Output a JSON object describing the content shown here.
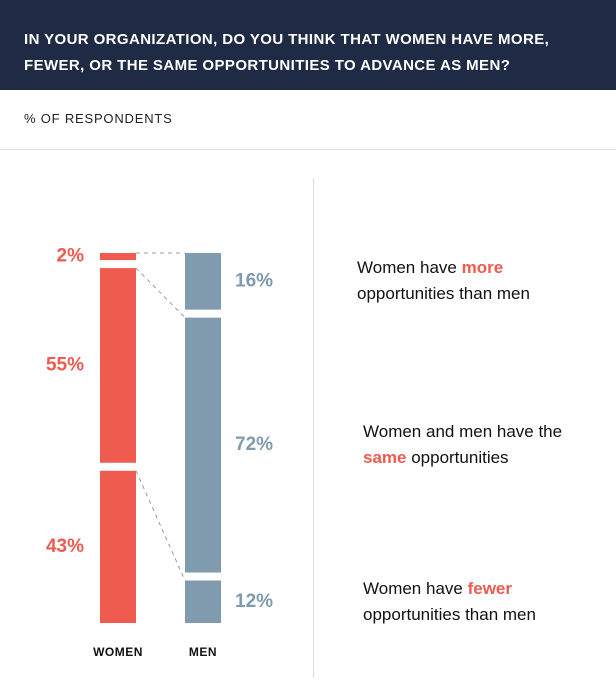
{
  "chart_data": {
    "type": "stacked_bar",
    "title": "IN YOUR ORGANIZATION, DO YOU THINK THAT WOMEN HAVE MORE, FEWER, OR THE SAME OPPORTUNITIES TO ADVANCE AS MEN?",
    "subtitle": "% OF RESPONDENTS",
    "categories": [
      "WOMEN",
      "MEN"
    ],
    "colors": [
      "#ef5b4f",
      "#7f9bad"
    ],
    "emphasis_color": "#ef5b4f",
    "ylim": [
      0,
      100
    ],
    "series": [
      {
        "values": [
          2,
          16
        ],
        "value_labels": [
          "2%",
          "16%"
        ],
        "legend_before": "Women have ",
        "legend_em": "more",
        "legend_after": " opportunities than men"
      },
      {
        "values": [
          55,
          72
        ],
        "value_labels": [
          "55%",
          "72%"
        ],
        "legend_before": "Women and men have the ",
        "legend_em": "same",
        "legend_after": " opportunities"
      },
      {
        "values": [
          43,
          12
        ],
        "value_labels": [
          "43%",
          "12%"
        ],
        "legend_before": "Women have ",
        "legend_em": "fewer",
        "legend_after": " opportunities than men"
      }
    ]
  }
}
